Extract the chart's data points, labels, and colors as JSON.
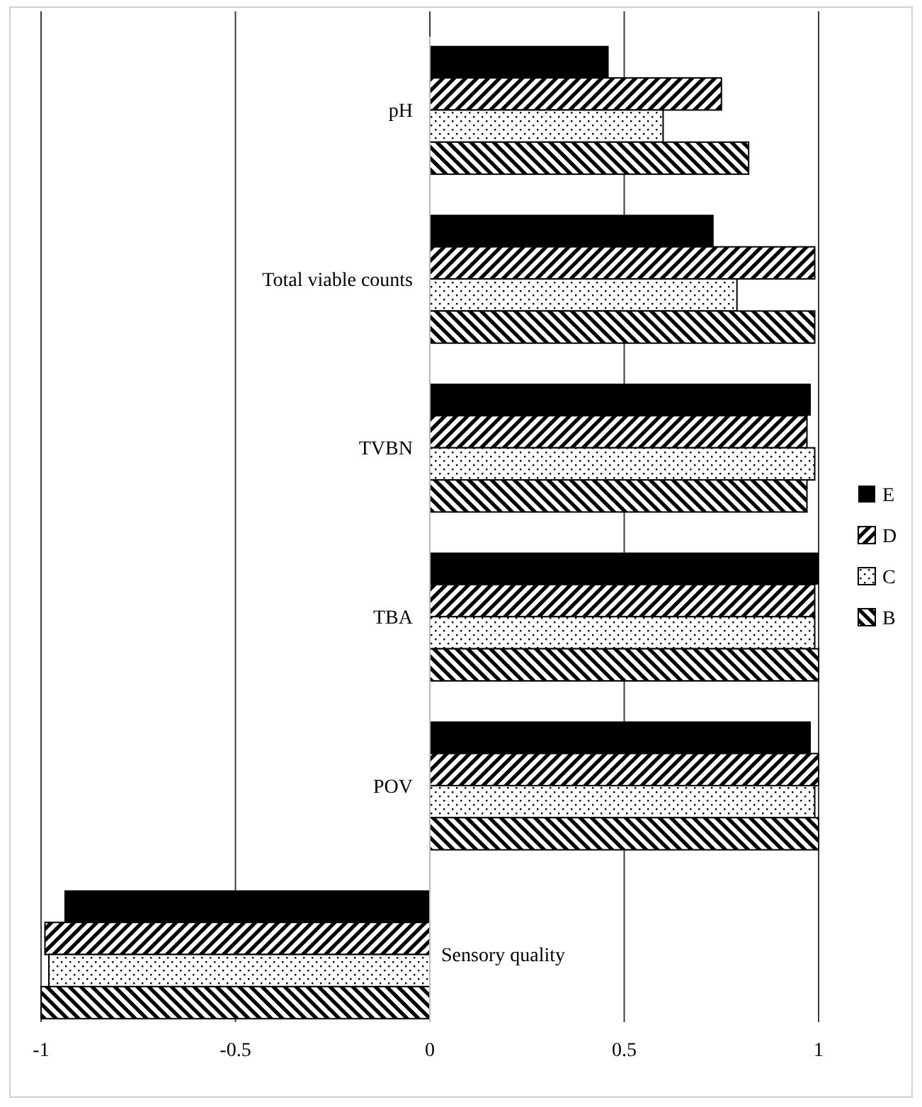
{
  "chart_data": {
    "type": "bar",
    "orientation": "horizontal",
    "categories": [
      "pH",
      "Total viable counts",
      "TVBN",
      "TBA",
      "POV",
      "Sensory quality"
    ],
    "series": [
      {
        "name": "E",
        "color": "#000000",
        "values": [
          0.46,
          0.73,
          0.98,
          1.0,
          0.98,
          -0.94
        ]
      },
      {
        "name": "D",
        "color": "#000000",
        "values": [
          0.75,
          0.99,
          0.97,
          0.99,
          1.0,
          -0.99
        ]
      },
      {
        "name": "C",
        "color": "#000000",
        "values": [
          0.6,
          0.79,
          0.99,
          0.99,
          0.99,
          -0.98
        ]
      },
      {
        "name": "B",
        "color": "#000000",
        "values": [
          0.82,
          0.99,
          0.97,
          1.0,
          1.0,
          -1.0
        ]
      }
    ],
    "xlim": [
      -1,
      1
    ],
    "xticks": [
      -1,
      -0.5,
      0,
      0.5,
      1
    ],
    "grid": "x",
    "legend": "right"
  }
}
